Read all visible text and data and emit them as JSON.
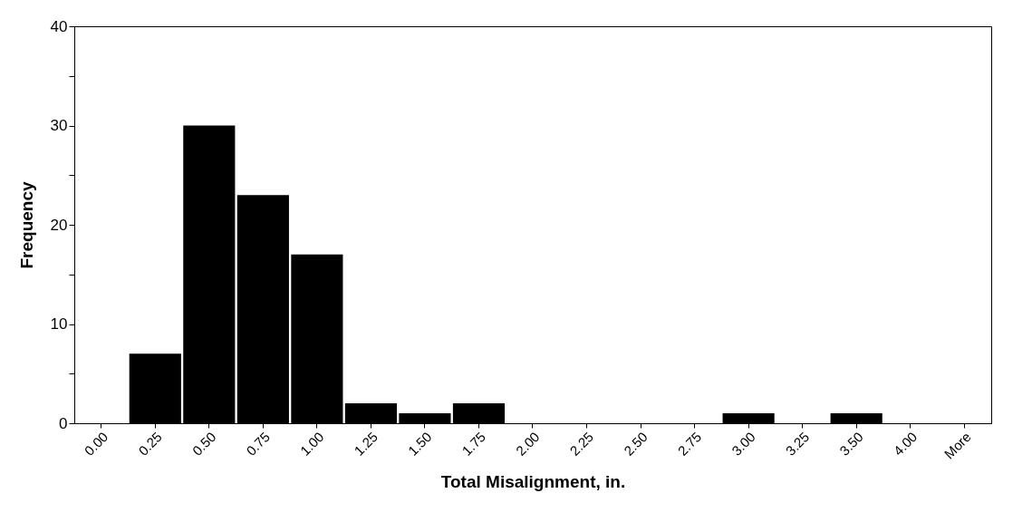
{
  "chart_data": {
    "type": "bar",
    "xlabel": "Total Misalignment, in.",
    "ylabel": "Frequency",
    "categories": [
      "0.00",
      "0.25",
      "0.50",
      "0.75",
      "1.00",
      "1.25",
      "1.50",
      "1.75",
      "2.00",
      "2.25",
      "2.50",
      "2.75",
      "3.00",
      "3.25",
      "3.50",
      "4.00",
      "More"
    ],
    "values": [
      0,
      7,
      30,
      23,
      17,
      2,
      1,
      2,
      0,
      0,
      0,
      0,
      1,
      0,
      1,
      0,
      0
    ],
    "color": "#000000",
    "ylim": [
      0,
      40
    ],
    "yticks": [
      0,
      {
        "value": 5,
        "label": null
      },
      10,
      {
        "value": 15,
        "label": null
      },
      20,
      {
        "value": 25,
        "label": null
      },
      30,
      {
        "value": 35,
        "label": null
      },
      40
    ],
    "grid": false
  }
}
